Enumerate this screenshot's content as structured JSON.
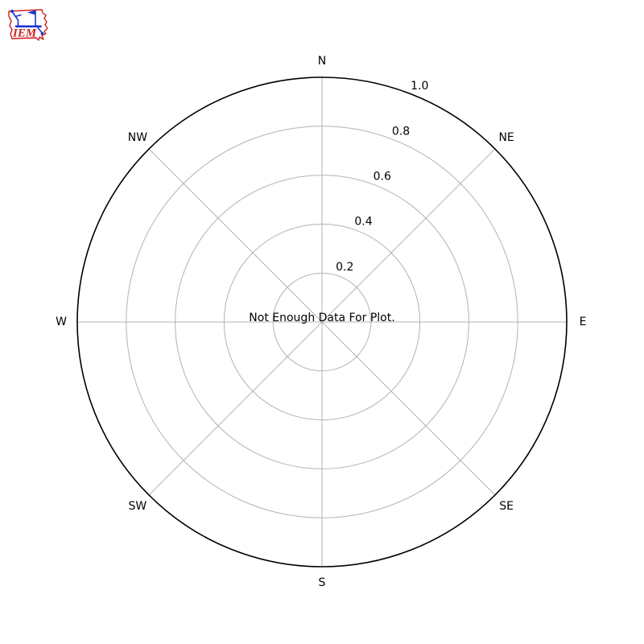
{
  "page": {
    "background_color": "#ffffff"
  },
  "logo": {
    "text": "IEM",
    "outline_color": "#cc2222",
    "instrument_color": "#2233cc"
  },
  "chart_data": {
    "type": "polar-windrose",
    "title": "",
    "center_message": "Not Enough Data For Plot.",
    "direction_labels": [
      "N",
      "NE",
      "E",
      "SE",
      "S",
      "SW",
      "W",
      "NW"
    ],
    "spoke_angles_deg": [
      0,
      45,
      90,
      135,
      180,
      225,
      270,
      315
    ],
    "radial_tick_labels": [
      "0.2",
      "0.4",
      "0.6",
      "0.8",
      "1.0"
    ],
    "radial_tick_values": [
      0.2,
      0.4,
      0.6,
      0.8,
      1.0
    ],
    "rlim": [
      0,
      1.0
    ],
    "rlabel_angle_deg": 22.5,
    "grid": true,
    "series": [],
    "legend": null,
    "colors": {
      "grid": "#b3b3b3",
      "outer_ring": "#000000",
      "text": "#000000"
    }
  }
}
